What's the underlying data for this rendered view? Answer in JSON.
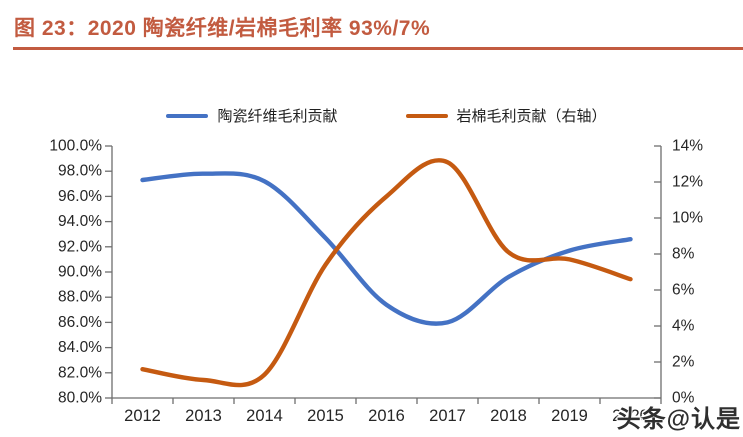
{
  "title": {
    "text": "图 23：2020 陶瓷纤维/岩棉毛利率 93%/7%",
    "accent_color": "#C25B40"
  },
  "watermark": {
    "text": "头条@认是"
  },
  "chart_data": {
    "type": "line",
    "smoothed": true,
    "grid": false,
    "legend_position": "top",
    "categories": [
      "2012",
      "2013",
      "2014",
      "2015",
      "2016",
      "2017",
      "2018",
      "2019",
      "2020"
    ],
    "series": [
      {
        "name": "陶瓷纤维毛利贡献",
        "axis": "left",
        "color": "#4472C4",
        "values": [
          97.3,
          97.8,
          97.2,
          92.7,
          87.4,
          86.0,
          89.6,
          91.7,
          92.6
        ]
      },
      {
        "name": "岩棉毛利贡献（右轴）",
        "axis": "right",
        "color": "#C55A11",
        "values": [
          1.6,
          1.0,
          1.3,
          7.4,
          11.2,
          13.1,
          8.1,
          7.7,
          6.6
        ]
      }
    ],
    "left_axis": {
      "min": 80,
      "max": 100,
      "step": 2,
      "tick_labels": [
        "100.0%",
        "98.0%",
        "96.0%",
        "94.0%",
        "92.0%",
        "90.0%",
        "88.0%",
        "86.0%",
        "84.0%",
        "82.0%",
        "80.0%"
      ]
    },
    "right_axis": {
      "min": 0,
      "max": 14,
      "step": 2,
      "tick_labels": [
        "14%",
        "12%",
        "10%",
        "8%",
        "6%",
        "4%",
        "2%",
        "0%"
      ]
    },
    "axis_color": "#6E6E6E",
    "label_color": "#262626"
  }
}
